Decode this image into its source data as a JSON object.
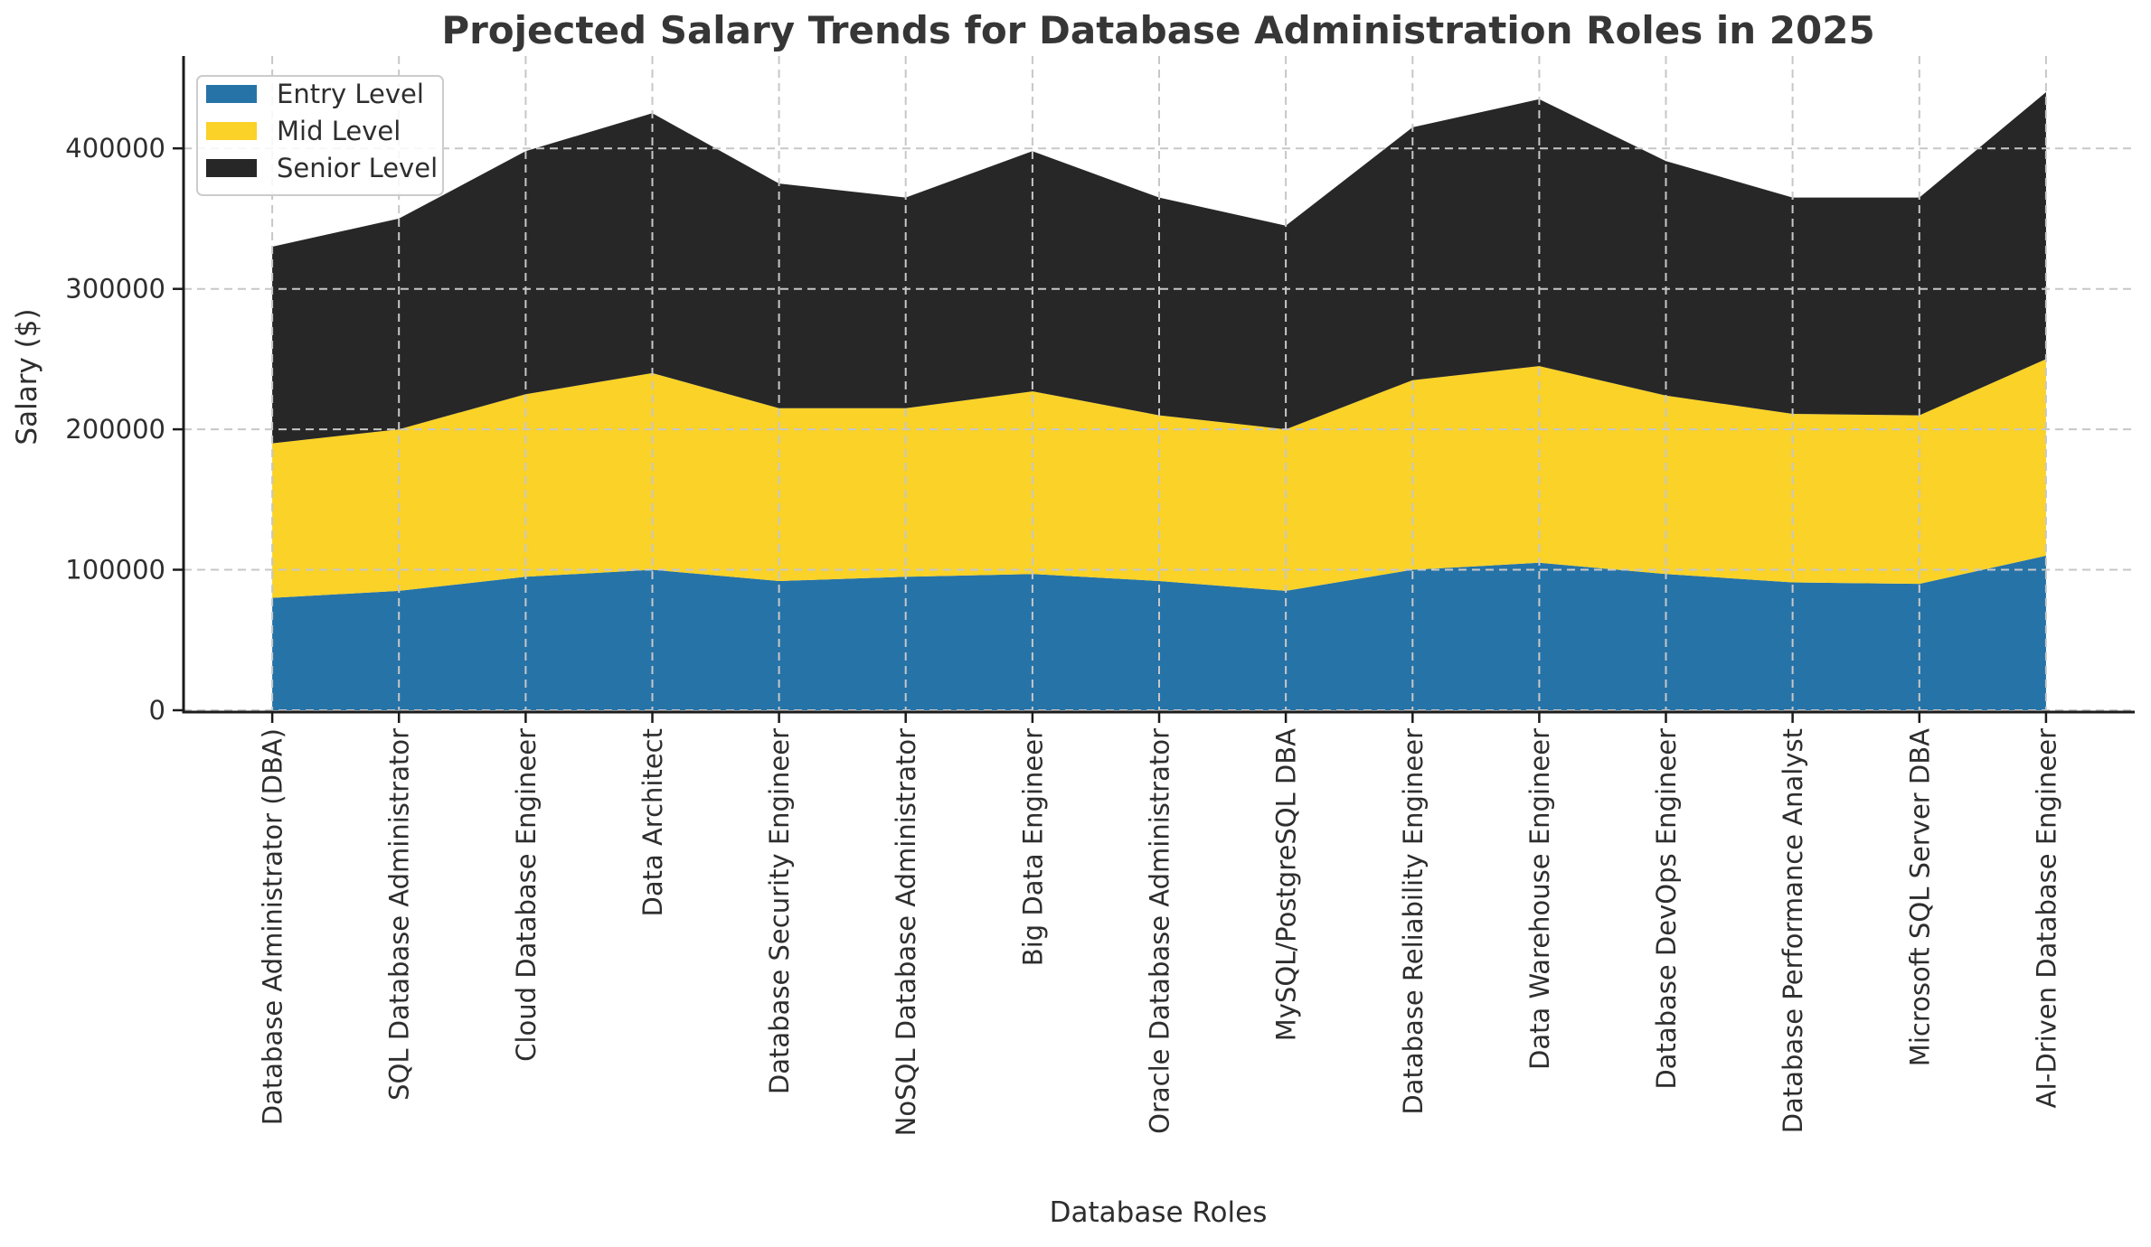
{
  "title": "Projected Salary Trends for Database Administration Roles in 2025",
  "colors": {
    "entry": "#2673a8",
    "mid": "#fad228",
    "senior": "#272727",
    "grid": "#c7c7c7",
    "spine": "#1b1b1b",
    "text": "#2e2e2e",
    "title_text": "#363636",
    "legend_border": "#cccccc",
    "background": "#ffffff"
  },
  "chart_data": {
    "type": "area",
    "stacked": true,
    "title": "Projected Salary Trends for Database Administration Roles in 2025",
    "xlabel": "Database Roles",
    "ylabel": "Salary ($)",
    "categories": [
      "Database Administrator (DBA)",
      "SQL Database Administrator",
      "Cloud Database Engineer",
      "Data Architect",
      "Database Security Engineer",
      "NoSQL Database Administrator",
      "Big Data Engineer",
      "Oracle Database Administrator",
      "MySQL/PostgreSQL DBA",
      "Database Reliability Engineer",
      "Data Warehouse Engineer",
      "Database DevOps Engineer",
      "Database Performance Analyst",
      "Microsoft SQL Server DBA",
      "AI-Driven Database Engineer"
    ],
    "series": [
      {
        "name": "Entry Level",
        "color_key": "entry",
        "values": [
          80000,
          85000,
          95000,
          100000,
          92000,
          95000,
          97000,
          92000,
          85000,
          100000,
          105000,
          97000,
          91000,
          90000,
          110000
        ]
      },
      {
        "name": "Mid Level",
        "color_key": "mid",
        "values": [
          110000,
          115000,
          130000,
          140000,
          123000,
          120000,
          130000,
          118000,
          115000,
          135000,
          140000,
          127000,
          120000,
          120000,
          140000
        ]
      },
      {
        "name": "Senior Level",
        "color_key": "senior",
        "values": [
          140000,
          150000,
          173000,
          185000,
          160000,
          150000,
          171000,
          155000,
          145000,
          180000,
          190000,
          167000,
          154000,
          155000,
          190000
        ]
      }
    ],
    "yticks": [
      0,
      100000,
      200000,
      300000,
      400000
    ],
    "ylim": [
      0,
      465000
    ],
    "grid": "dashed",
    "legend_position": "upper left",
    "legend_entries": [
      "Entry Level",
      "Mid Level",
      "Senior Level"
    ]
  }
}
